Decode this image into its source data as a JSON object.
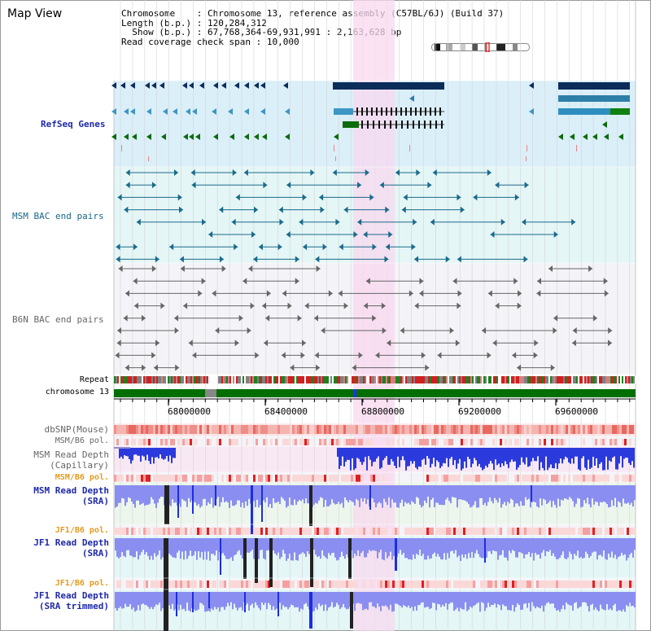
{
  "title": "Map View",
  "info": {
    "chromosome_label": "Chromosome",
    "chromosome_value": "Chromosome 13, reference assembly (C57BL/6J) (Build 37)",
    "length_label": "Length (b.p.)",
    "length_value": "120,284,312",
    "show_label": "Show (b.p.)",
    "show_value": "67,768,364-69,931,991 : 2,163,628 bp",
    "coverage_label": "Read coverage check span",
    "coverage_value": "10,000"
  },
  "tracks": {
    "refseq": "RefSeq Genes",
    "msm_bac": "MSM BAC end pairs",
    "b6n_bac": "B6N BAC end pairs",
    "repeat": "Repeat",
    "chromosome": "chromosome 13",
    "dbsnp": "dbSNP(Mouse)",
    "msm_b6_pol_1": "MSM/B6 pol.",
    "msm_depth_cap_1": "MSM Read Depth",
    "msm_depth_cap_2": "(Capillary)",
    "msm_b6_pol_2": "MSM/B6 pol.",
    "msm_depth_sra_1": "MSM Read Depth",
    "msm_depth_sra_2": "(SRA)",
    "jf1_b6_pol_1": "JF1/B6 pol.",
    "jf1_depth_sra_1": "JF1 Read Depth",
    "jf1_depth_sra_2": "(SRA)",
    "jf1_b6_pol_2": "JF1/B6 pol.",
    "jf1_depth_trim_1": "JF1 Read Depth",
    "jf1_depth_trim_2": "(SRA trimmed)"
  },
  "axis": {
    "ticks": [
      "68000000",
      "68400000",
      "68800000",
      "69200000",
      "69600000"
    ]
  },
  "colors": {
    "refseq_bg": "#dbeff9",
    "bac_bg": "#e4f6f6",
    "b6n_bg": "#f4f4f8",
    "highlight": "#f8d8ef",
    "chromosome": "#006e00",
    "label_gray": "#666666",
    "label_orange": "#e39b1f",
    "label_blue": "#1f2aa8",
    "label_teal": "#1a6688",
    "depth_blue": "#1b2fe0",
    "depth_light": "#8a8ef0"
  }
}
